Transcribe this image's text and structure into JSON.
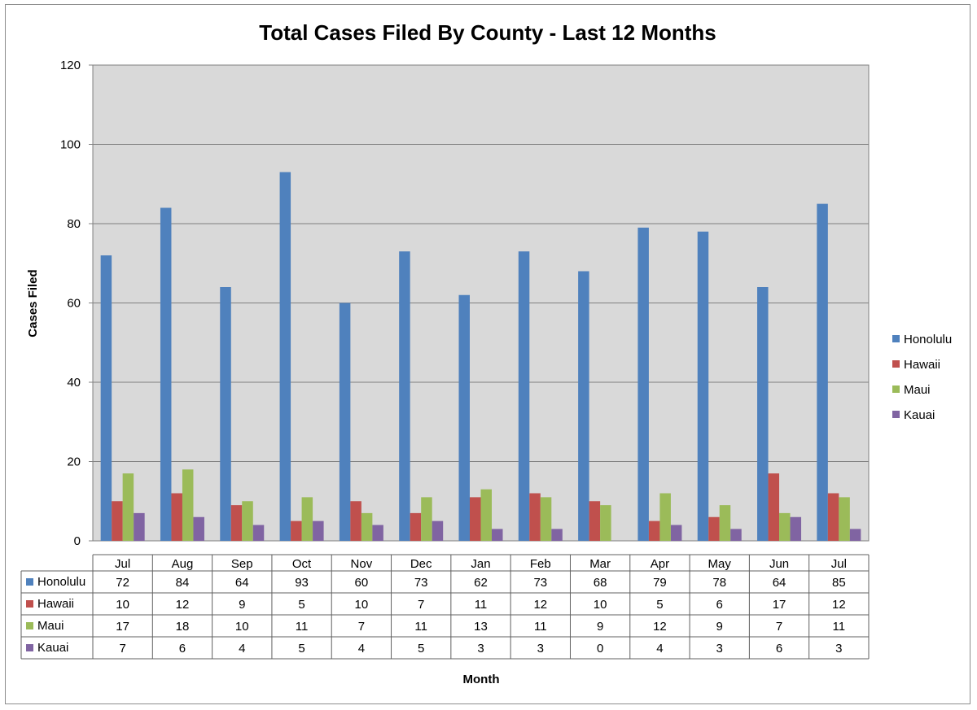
{
  "chart_data": {
    "type": "bar",
    "title": "Total Cases Filed By County - Last 12 Months",
    "xlabel": "Month",
    "ylabel": "Cases Filed",
    "ylim": [
      0,
      120
    ],
    "yticks": [
      "0",
      "20",
      "40",
      "60",
      "80",
      "100",
      "120"
    ],
    "grid": true,
    "legend_position": "right",
    "categories": [
      "Jul",
      "Aug",
      "Sep",
      "Oct",
      "Nov",
      "Dec",
      "Jan",
      "Feb",
      "Mar",
      "Apr",
      "May",
      "Jun",
      "Jul"
    ],
    "series": [
      {
        "name": "Honolulu",
        "color": "#4F81BD",
        "values": [
          72,
          84,
          64,
          93,
          60,
          73,
          62,
          73,
          68,
          79,
          78,
          64,
          85
        ]
      },
      {
        "name": "Hawaii",
        "color": "#C0504D",
        "values": [
          10,
          12,
          9,
          5,
          10,
          7,
          11,
          12,
          10,
          5,
          6,
          17,
          12
        ]
      },
      {
        "name": "Maui",
        "color": "#9BBB59",
        "values": [
          17,
          18,
          10,
          11,
          7,
          11,
          13,
          11,
          9,
          12,
          9,
          7,
          11
        ]
      },
      {
        "name": "Kauai",
        "color": "#8064A2",
        "values": [
          7,
          6,
          4,
          5,
          4,
          5,
          3,
          3,
          0,
          4,
          3,
          6,
          3
        ]
      }
    ],
    "data_table": true,
    "plot_background": "#D9D9D9"
  }
}
